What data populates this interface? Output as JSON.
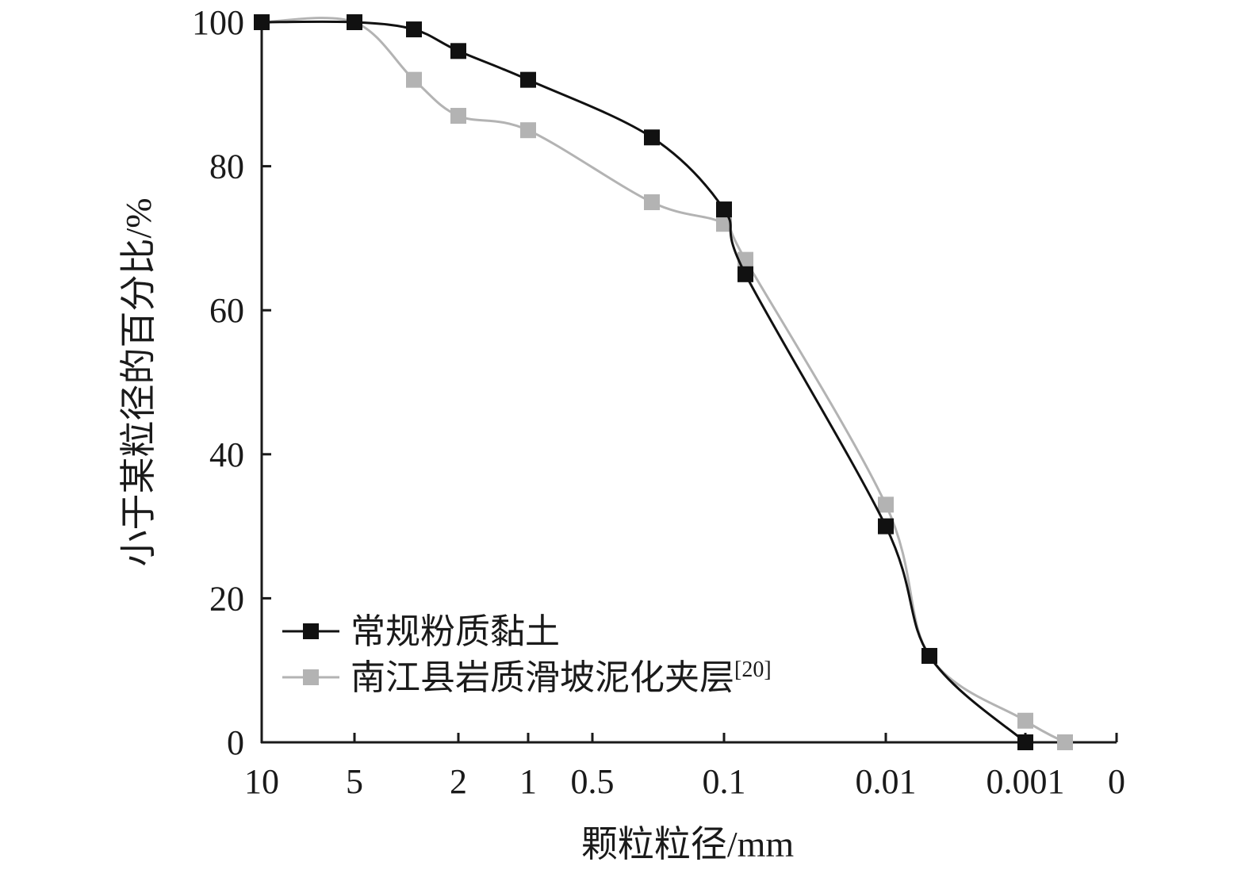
{
  "chart_data": {
    "type": "line",
    "xlabel": "颗粒粒径/mm",
    "ylabel": "小于某粒径的百分比/%",
    "ylim": [
      0,
      100
    ],
    "y_ticks": [
      "0",
      "20",
      "40",
      "60",
      "80",
      "100"
    ],
    "x_axis_reversed": true,
    "x_ticks": [
      "10",
      "5",
      "2",
      "1",
      "0.5",
      "0.1",
      "0.01",
      "0.001",
      "0"
    ],
    "grid": false,
    "legend_position": "lower-left",
    "series": [
      {
        "name": "常规粉质黏土",
        "color": "#111111",
        "marker": "square",
        "x": [
          10,
          5,
          3,
          2,
          1,
          0.2,
          0.1,
          0.08,
          0.01,
          0.005,
          0.001
        ],
        "y": [
          100,
          100,
          99,
          96,
          92,
          84,
          74,
          65,
          30,
          12,
          0
        ]
      },
      {
        "name": "南江县岩质滑坡泥化夹层",
        "name_ref": "[20]",
        "color": "#b3b3b3",
        "marker": "square",
        "x": [
          10,
          5,
          3,
          2,
          1,
          0.2,
          0.1,
          0.08,
          0.01,
          0.005,
          0.001,
          0.0005
        ],
        "y": [
          100,
          100,
          92,
          87,
          85,
          75,
          72,
          67,
          33,
          12,
          3,
          0
        ]
      }
    ]
  }
}
